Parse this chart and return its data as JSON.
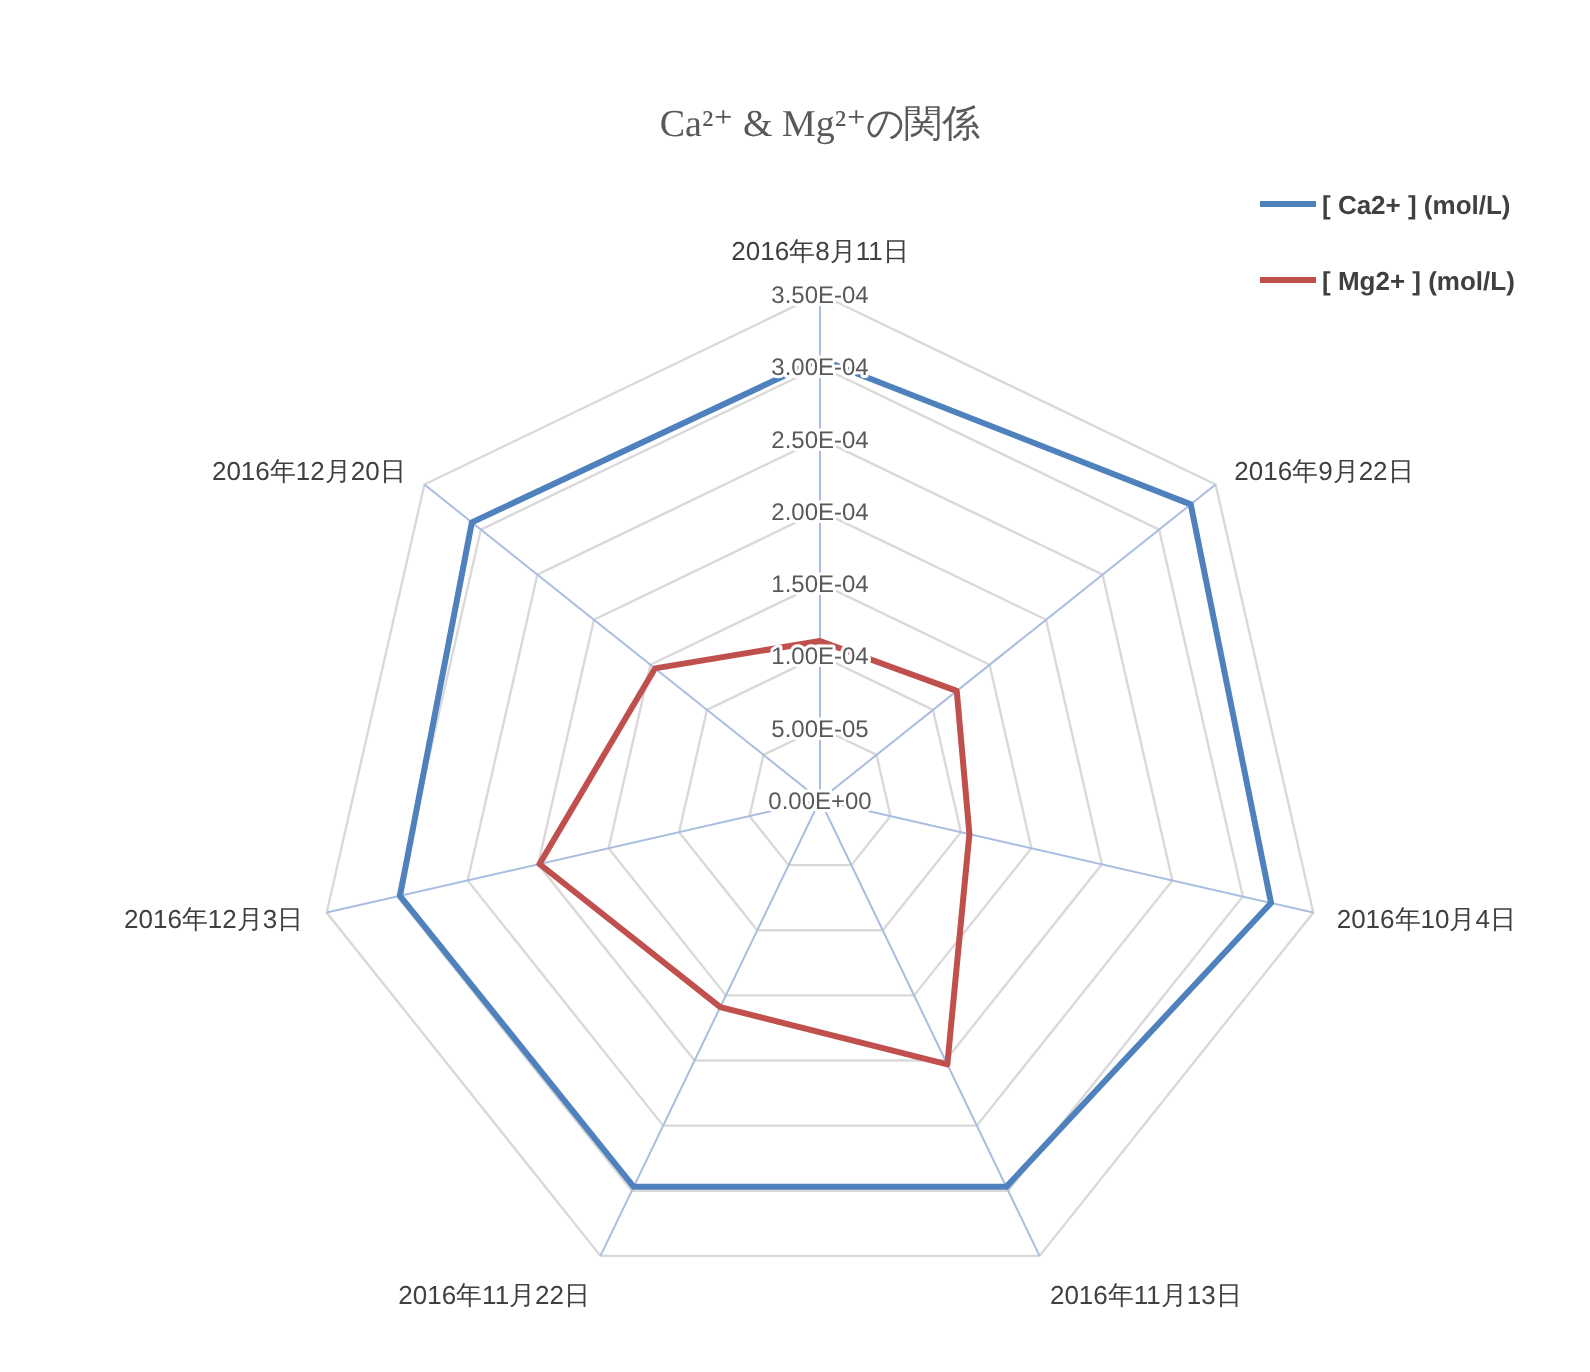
{
  "chart_data": {
    "type": "radar",
    "title": "Ca²⁺ & Mg²⁺の関係",
    "categories": [
      "2016年8月11日",
      "2016年9月22日",
      "2016年10月4日",
      "2016年11月13日",
      "2016年11月22日",
      "2016年12月3日",
      "2016年12月20日"
    ],
    "series": [
      {
        "name": "[ Ca2+ ] (mol/L)",
        "color": "#4f81bd",
        "values": [
          0.000305,
          0.000328,
          0.00032,
          0.000297,
          0.000297,
          0.000298,
          0.000308
        ]
      },
      {
        "name": "[ Mg2+ ] (mol/L)",
        "color": "#c0504d",
        "values": [
          0.00011,
          0.000121,
          0.000106,
          0.000203,
          0.000159,
          0.000199,
          0.000146
        ]
      }
    ],
    "ylim": [
      0,
      0.00035
    ],
    "yticks": [
      {
        "value": 0,
        "label": "0.00E+00"
      },
      {
        "value": 5e-05,
        "label": "5.00E-05"
      },
      {
        "value": 0.0001,
        "label": "1.00E-04"
      },
      {
        "value": 0.00015,
        "label": "1.50E-04"
      },
      {
        "value": 0.0002,
        "label": "2.00E-04"
      },
      {
        "value": 0.00025,
        "label": "2.50E-04"
      },
      {
        "value": 0.0003,
        "label": "3.00E-04"
      },
      {
        "value": 0.00035,
        "label": "3.50E-04"
      }
    ],
    "grid": true,
    "legend": "top right"
  }
}
